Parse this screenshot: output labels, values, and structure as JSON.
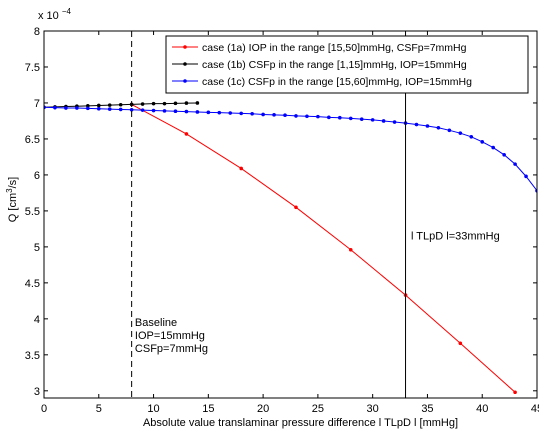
{
  "chart_data": {
    "type": "line",
    "xlabel": "Absolute value translaminar pressure difference l TLpD l [mmHg]",
    "ylabel_main": "Q [cm",
    "ylabel_sup": "3",
    "ylabel_tail": "/s]",
    "y_multiplier_base": "x 10",
    "y_multiplier_exp": "−4",
    "xlim": [
      0,
      45
    ],
    "ylim": [
      2.9,
      8
    ],
    "xticks": [
      0,
      5,
      10,
      15,
      20,
      25,
      30,
      35,
      40,
      45
    ],
    "yticks": [
      3,
      3.5,
      4,
      4.5,
      5,
      5.5,
      6,
      6.5,
      7,
      7.5,
      8
    ],
    "legend_position": "top-right",
    "series": [
      {
        "name": "case (1a) IOP in the range [15,50]mmHg, CSFp=7mmHg",
        "color": "#ff0000",
        "x": [
          8,
          13,
          18,
          23,
          28,
          33,
          38,
          43
        ],
        "y": [
          6.98,
          6.57,
          6.09,
          5.55,
          4.96,
          4.33,
          3.66,
          2.98
        ]
      },
      {
        "name": "case (1b) CSFp in the range [1,15]mmHg, IOP=15mmHg",
        "color": "#000000",
        "x": [
          0,
          1,
          2,
          3,
          4,
          5,
          6,
          7,
          8,
          9,
          10,
          11,
          12,
          13,
          14
        ],
        "y": [
          6.94,
          6.945,
          6.95,
          6.955,
          6.96,
          6.965,
          6.97,
          6.975,
          6.98,
          6.985,
          6.99,
          6.99,
          6.995,
          6.998,
          7.0
        ]
      },
      {
        "name": "case (1c) CSFp in the range [15,60]mmHg, IOP=15mmHg",
        "color": "#0000ff",
        "x": [
          0,
          1,
          2,
          3,
          4,
          5,
          6,
          7,
          8,
          9,
          10,
          11,
          12,
          13,
          14,
          15,
          16,
          17,
          18,
          19,
          20,
          21,
          22,
          23,
          24,
          25,
          26,
          27,
          28,
          29,
          30,
          31,
          32,
          33,
          34,
          35,
          36,
          37,
          38,
          39,
          40,
          41,
          42,
          43,
          44,
          45
        ],
        "y": [
          6.94,
          6.935,
          6.93,
          6.93,
          6.925,
          6.92,
          6.915,
          6.91,
          6.905,
          6.9,
          6.895,
          6.89,
          6.885,
          6.88,
          6.875,
          6.87,
          6.865,
          6.86,
          6.855,
          6.85,
          6.84,
          6.835,
          6.83,
          6.82,
          6.815,
          6.81,
          6.8,
          6.795,
          6.785,
          6.775,
          6.765,
          6.75,
          6.735,
          6.72,
          6.7,
          6.68,
          6.655,
          6.62,
          6.58,
          6.53,
          6.46,
          6.38,
          6.28,
          6.15,
          5.98,
          5.78
        ]
      }
    ],
    "vlines": [
      {
        "x": 8,
        "style": "dashed"
      },
      {
        "x": 33,
        "style": "solid"
      }
    ],
    "annotations": [
      {
        "lines": [
          "Baseline",
          "IOP=15mmHg",
          "CSFp=7mmHg"
        ],
        "x": 8.3,
        "y": 3.9
      },
      {
        "lines": [
          "l TLpD l=33mmHg"
        ],
        "x": 33.5,
        "y": 5.1
      }
    ]
  }
}
